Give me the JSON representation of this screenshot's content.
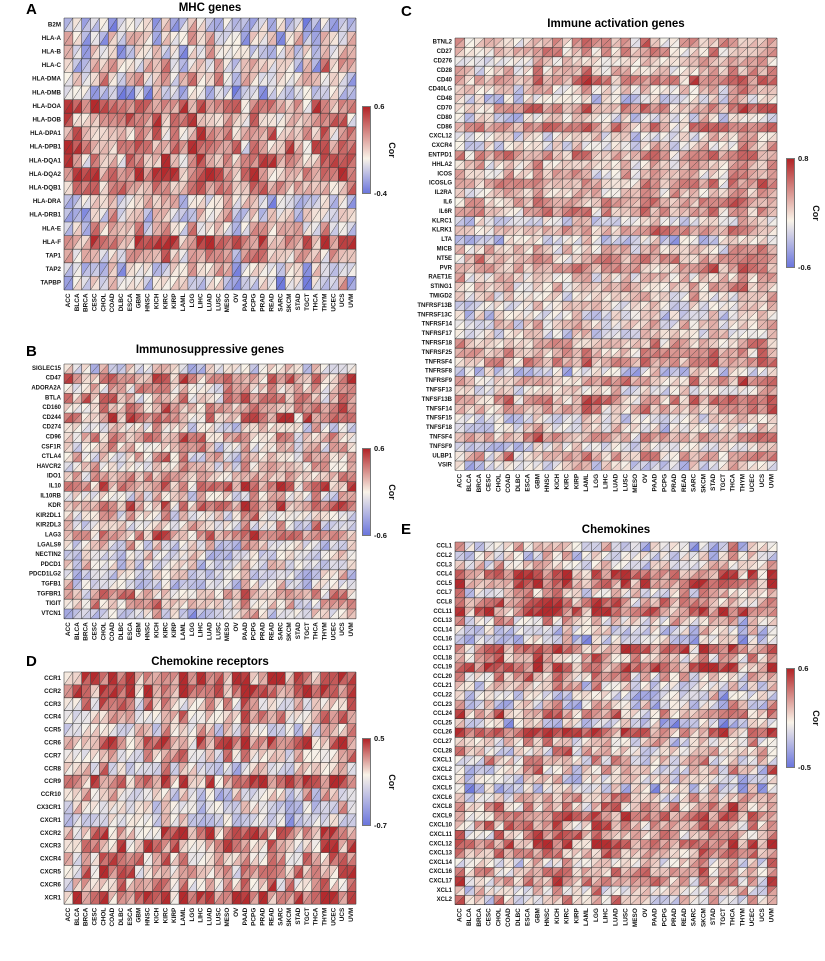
{
  "shared_columns": [
    "ACC",
    "BLCA",
    "BRCA",
    "CESC",
    "CHOL",
    "COAD",
    "DLBC",
    "ESCA",
    "GBM",
    "HNSC",
    "KICH",
    "KIRC",
    "KIRP",
    "LAML",
    "LGG",
    "LIHC",
    "LUAD",
    "LUSC",
    "MESO",
    "OV",
    "PAAD",
    "PCPG",
    "PRAD",
    "READ",
    "SARC",
    "SKCM",
    "STAD",
    "TGCT",
    "THCA",
    "THYM",
    "UCEC",
    "UCS",
    "UVM"
  ],
  "chart_data": [
    {
      "type": "heatmap",
      "panel_letter": "A",
      "title": "MHC genes",
      "rows": [
        "B2M",
        "HLA-A",
        "HLA-B",
        "HLA-C",
        "HLA-DMA",
        "HLA-DMB",
        "HLA-DOA",
        "HLA-DOB",
        "HLA-DPA1",
        "HLA-DPB1",
        "HLA-DQA1",
        "HLA-DQA2",
        "HLA-DQB1",
        "HLA-DRA",
        "HLA-DRB1",
        "HLA-E",
        "HLA-F",
        "TAP1",
        "TAP2",
        "TAPBP"
      ],
      "columns": "shared_columns",
      "cell_encoding": "each cell split by a '/' diagonal into two correlation triangles",
      "colorbar": {
        "label": "Cor",
        "max_label": "0.6",
        "min_label": "-0.4",
        "vmax": 0.6,
        "vmin": -0.4
      }
    },
    {
      "type": "heatmap",
      "panel_letter": "B",
      "title": "Immunosuppressive genes",
      "rows": [
        "SIGLEC15",
        "CD47",
        "ADORA2A",
        "BTLA",
        "CD160",
        "CD244",
        "CD274",
        "CD96",
        "CSF1R",
        "CTLA4",
        "HAVCR2",
        "IDO1",
        "IL10",
        "IL10RB",
        "KDR",
        "KIR2DL1",
        "KIR2DL3",
        "LAG3",
        "LGALS9",
        "NECTIN2",
        "PDCD1",
        "PDCD1LG2",
        "TGFB1",
        "TGFBR1",
        "TIGIT",
        "VTCN1"
      ],
      "columns": "shared_columns",
      "cell_encoding": "each cell split by a '/' diagonal into two correlation triangles",
      "colorbar": {
        "label": "Cor",
        "max_label": "0.6",
        "min_label": "-0.6",
        "vmax": 0.6,
        "vmin": -0.6
      }
    },
    {
      "type": "heatmap",
      "panel_letter": "C",
      "title": "Immune activation genes",
      "rows": [
        "BTNL2",
        "CD27",
        "CD276",
        "CD28",
        "CD40",
        "CD40LG",
        "CD48",
        "CD70",
        "CD80",
        "CD86",
        "CXCL12",
        "CXCR4",
        "ENTPD1",
        "HHLA2",
        "ICOS",
        "ICOSLG",
        "IL2RA",
        "IL6",
        "IL6R",
        "KLRC1",
        "KLRK1",
        "LTA",
        "MICB",
        "NT5E",
        "PVR",
        "RAET1E",
        "STING1",
        "TMIGD2",
        "TNFRSF13B",
        "TNFRSF13C",
        "TNFRSF14",
        "TNFRSF17",
        "TNFRSF18",
        "TNFRSF25",
        "TNFRSF4",
        "TNFRSF8",
        "TNFRSF9",
        "TNFSF13",
        "TNFSF13B",
        "TNFSF14",
        "TNFSF15",
        "TNFSF18",
        "TNFSF4",
        "TNFSF9",
        "ULBP1",
        "VSIR"
      ],
      "columns": "shared_columns",
      "cell_encoding": "each cell split by a '/' diagonal into two correlation triangles",
      "colorbar": {
        "label": "Cor",
        "max_label": "0.8",
        "min_label": "-0.6",
        "vmax": 0.8,
        "vmin": -0.6
      }
    },
    {
      "type": "heatmap",
      "panel_letter": "D",
      "title": "Chemokine receptors",
      "rows": [
        "CCR1",
        "CCR2",
        "CCR3",
        "CCR4",
        "CCR5",
        "CCR6",
        "CCR7",
        "CCR8",
        "CCR9",
        "CCR10",
        "CX3CR1",
        "CXCR1",
        "CXCR2",
        "CXCR3",
        "CXCR4",
        "CXCR5",
        "CXCR6",
        "XCR1"
      ],
      "columns": "shared_columns",
      "cell_encoding": "each cell split by a '/' diagonal into two correlation triangles",
      "colorbar": {
        "label": "Cor",
        "max_label": "0.5",
        "min_label": "-0.7",
        "vmax": 0.5,
        "vmin": -0.7
      }
    },
    {
      "type": "heatmap",
      "panel_letter": "E",
      "title": "Chemokines",
      "rows": [
        "CCL1",
        "CCL2",
        "CCL3",
        "CCL4",
        "CCL5",
        "CCL7",
        "CCL8",
        "CCL11",
        "CCL13",
        "CCL14",
        "CCL16",
        "CCL17",
        "CCL18",
        "CCL19",
        "CCL20",
        "CCL21",
        "CCL22",
        "CCL23",
        "CCL24",
        "CCL25",
        "CCL26",
        "CCL27",
        "CCL28",
        "CXCL1",
        "CXCL2",
        "CXCL3",
        "CXCL5",
        "CXCL6",
        "CXCL8",
        "CXCL9",
        "CXCL10",
        "CXCL11",
        "CXCL12",
        "CXCL13",
        "CXCL14",
        "CXCL16",
        "CXCL17",
        "XCL1",
        "XCL2"
      ],
      "columns": "shared_columns",
      "cell_encoding": "each cell split by a '/' diagonal into two correlation triangles",
      "colorbar": {
        "label": "Cor",
        "max_label": "0.6",
        "min_label": "-0.5",
        "vmax": 0.6,
        "vmin": -0.5
      }
    }
  ],
  "style": {
    "positive_max": "#b22427",
    "negative_min": "#6b76dd",
    "zero": "#f9f3e8",
    "grid_line": "#3b3b3b",
    "render_seed": 20240613,
    "values_note": "individual cell correlation values are not legible at source resolution; triangle fills are seeded pseudo-random values within each panel's colorbar range"
  }
}
